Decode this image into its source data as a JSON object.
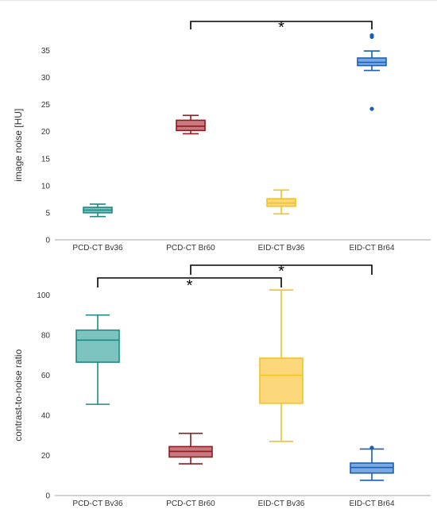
{
  "chart_data": [
    {
      "type": "box",
      "ylabel": "image noise [HU]",
      "ylim": [
        0,
        38
      ],
      "yticks": [
        0,
        5,
        10,
        15,
        20,
        25,
        30,
        35
      ],
      "grid": false,
      "categories": [
        "PCD-CT Bv36",
        "PCD-CT Br60",
        "EID-CT Bv36",
        "EID-CT Br64"
      ],
      "boxes": [
        {
          "category": "PCD-CT Bv36",
          "min": 4.3,
          "q1": 5.0,
          "median": 5.5,
          "q3": 6.0,
          "max": 6.6,
          "outliers": [],
          "fill": "#7dc4c1",
          "stroke": "#1f8a84"
        },
        {
          "category": "PCD-CT Br60",
          "min": 19.6,
          "q1": 20.2,
          "median": 21.0,
          "q3": 22.1,
          "max": 23.0,
          "outliers": [],
          "fill": "#c77a7f",
          "stroke": "#8e1b22"
        },
        {
          "category": "EID-CT Bv36",
          "min": 4.8,
          "q1": 6.2,
          "median": 6.8,
          "q3": 7.6,
          "max": 9.2,
          "outliers": [],
          "fill": "#fcd87a",
          "stroke": "#f3c223"
        },
        {
          "category": "EID-CT Br64",
          "min": 31.3,
          "q1": 32.2,
          "median": 32.8,
          "q3": 33.6,
          "max": 34.9,
          "outliers": [
            24.2,
            37.5,
            37.8
          ],
          "fill": "#7aa8e0",
          "stroke": "#1a5fb4"
        }
      ],
      "significance": [
        {
          "from": "PCD-CT Br60",
          "to": "EID-CT Br64",
          "label": "*"
        }
      ]
    },
    {
      "type": "box",
      "ylabel": "contrast-to-noise ratio",
      "ylim": [
        0,
        108
      ],
      "yticks": [
        0,
        20,
        40,
        60,
        80,
        100
      ],
      "grid": false,
      "categories": [
        "PCD-CT Bv36",
        "PCD-CT Br60",
        "EID-CT Bv36",
        "EID-CT Br64"
      ],
      "boxes": [
        {
          "category": "PCD-CT Bv36",
          "min": 45.5,
          "q1": 66.5,
          "median": 77.5,
          "q3": 82.5,
          "max": 90.0,
          "outliers": [],
          "fill": "#7dc4c1",
          "stroke": "#1f8a84"
        },
        {
          "category": "PCD-CT Br60",
          "min": 15.8,
          "q1": 19.2,
          "median": 22.0,
          "q3": 24.4,
          "max": 31.0,
          "outliers": [],
          "fill": "#c77a7f",
          "stroke": "#8e1b22"
        },
        {
          "category": "EID-CT Bv36",
          "min": 27.0,
          "q1": 46.0,
          "median": 60.0,
          "q3": 68.5,
          "max": 102.5,
          "outliers": [],
          "fill": "#fcd87a",
          "stroke": "#f3c223"
        },
        {
          "category": "EID-CT Br64",
          "min": 7.6,
          "q1": 11.2,
          "median": 14.0,
          "q3": 16.2,
          "max": 23.2,
          "outliers": [
            23.8
          ],
          "fill": "#7aa8e0",
          "stroke": "#1a5fb4"
        }
      ],
      "significance": [
        {
          "from": "PCD-CT Bv36",
          "to": "EID-CT Bv36",
          "label": "*"
        },
        {
          "from": "PCD-CT Br60",
          "to": "EID-CT Br64",
          "label": "*"
        }
      ]
    }
  ]
}
